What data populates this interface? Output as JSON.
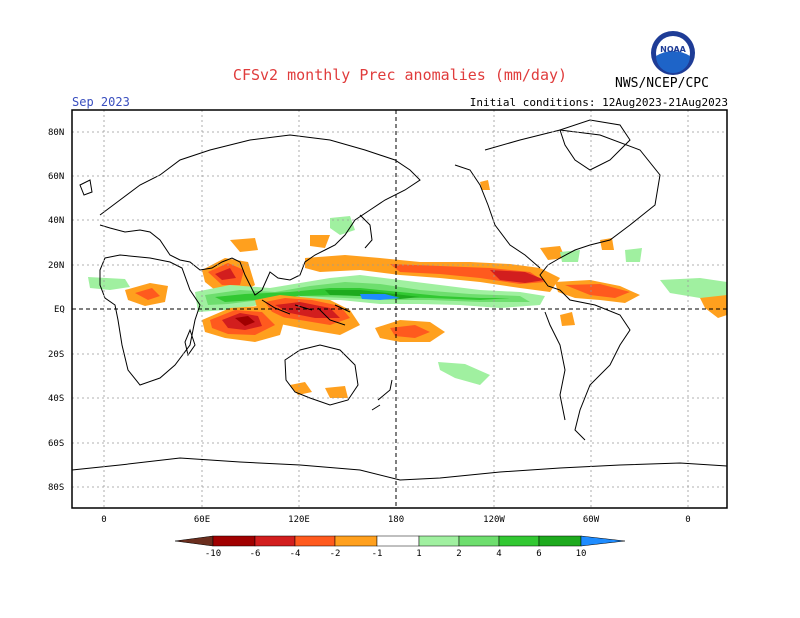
{
  "title": "CFSv2 monthly Prec anomalies (mm/day)",
  "org": "NWS/NCEP/CPC",
  "logo_text": "NOAA",
  "month": "Sep 2023",
  "initial_conditions": "Initial conditions: 12Aug2023-21Aug2023",
  "lat_labels": [
    "80N",
    "60N",
    "40N",
    "20N",
    "EQ",
    "20S",
    "40S",
    "60S",
    "80S"
  ],
  "lon_labels": [
    "0",
    "60E",
    "120E",
    "180",
    "120W",
    "60W",
    "0"
  ],
  "colorbar": {
    "labels": [
      "-10",
      "-6",
      "-4",
      "-2",
      "-1",
      "1",
      "2",
      "4",
      "6",
      "10"
    ],
    "colors": {
      "lt_m10": "#6b2e1e",
      "m10_m6": "#a00000",
      "m6_m4": "#d21e1e",
      "m4_m2": "#ff5a1e",
      "m2_m1": "#ffa01e",
      "m1_1": "#ffffff",
      "1_2": "#a0f0a0",
      "2_4": "#6ede6e",
      "4_6": "#32c832",
      "6_10": "#1eaa1e",
      "gt_10": "#1e8cff"
    }
  }
}
